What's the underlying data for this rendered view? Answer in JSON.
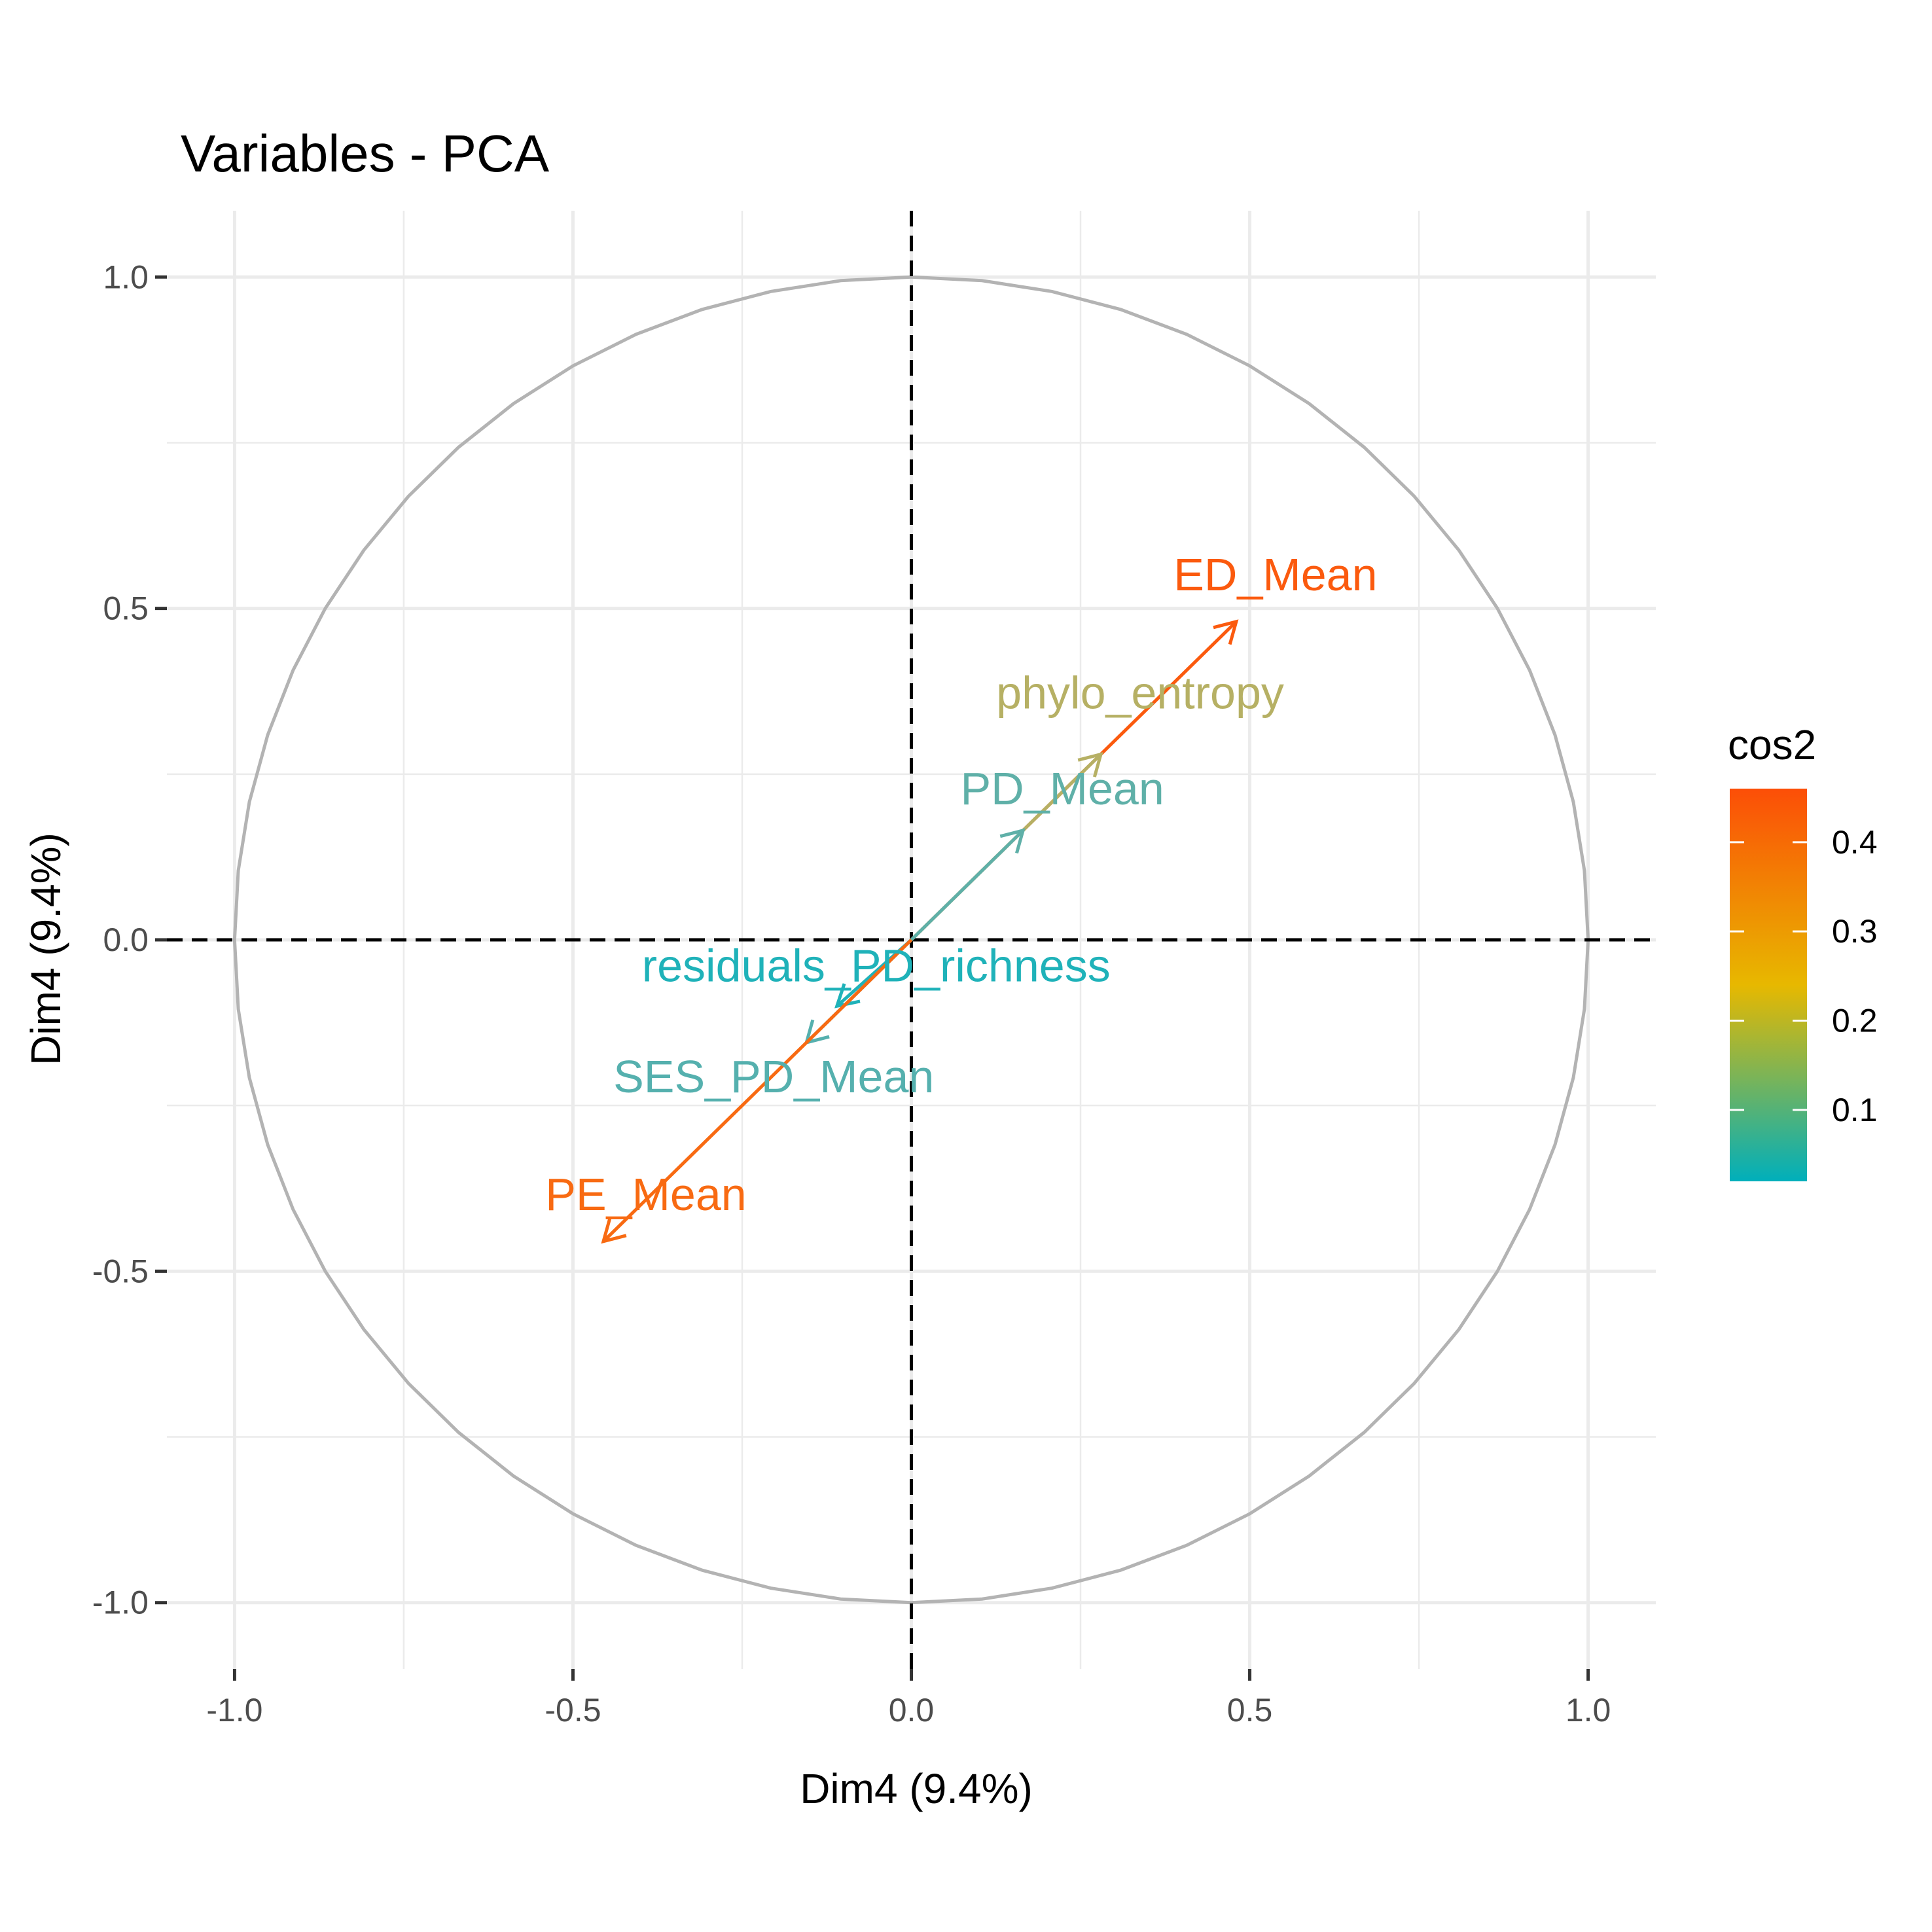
{
  "chart_data": {
    "type": "scatter",
    "subtype": "pca-variable-correlation-circle",
    "title": "Variables - PCA",
    "xlabel": "Dim4 (9.4%)",
    "ylabel": "Dim4 (9.4%)",
    "xlim": [
      -1.1,
      1.1
    ],
    "ylim": [
      -1.1,
      1.1
    ],
    "x_ticks": [
      {
        "value": -1.0,
        "label": "-1.0"
      },
      {
        "value": -0.5,
        "label": "-0.5"
      },
      {
        "value": 0.0,
        "label": "0.0"
      },
      {
        "value": 0.5,
        "label": "0.5"
      },
      {
        "value": 1.0,
        "label": "1.0"
      }
    ],
    "y_ticks": [
      {
        "value": 1.0,
        "label": "1.0"
      },
      {
        "value": 0.5,
        "label": "0.5"
      },
      {
        "value": 0.0,
        "label": "0.0"
      },
      {
        "value": -0.5,
        "label": "-0.5"
      },
      {
        "value": -1.0,
        "label": "-1.0"
      }
    ],
    "grid": true,
    "unit_circle": true,
    "reference_lines": {
      "x": 0,
      "y": 0,
      "style": "dashed"
    },
    "variables": [
      {
        "name": "ED_Mean",
        "x": 0.48,
        "y": 0.48,
        "cos2": 0.46,
        "color": "#fb5a0e"
      },
      {
        "name": "phylo_entropy",
        "x": 0.28,
        "y": 0.28,
        "cos2": 0.16,
        "color": "#b6b064"
      },
      {
        "name": "PD_Mean",
        "x": 0.165,
        "y": 0.165,
        "cos2": 0.06,
        "color": "#5fb0a8"
      },
      {
        "name": "residuals_PD_richness",
        "x": -0.11,
        "y": -0.1,
        "cos2": 0.02,
        "color": "#1fb2b9"
      },
      {
        "name": "SES_PD_Mean",
        "x": -0.155,
        "y": -0.155,
        "cos2": 0.05,
        "color": "#55b0ae"
      },
      {
        "name": "PE_Mean",
        "x": -0.455,
        "y": -0.455,
        "cos2": 0.42,
        "color": "#f86a12"
      }
    ],
    "legend": {
      "title": "cos2",
      "placement": "right",
      "min": 0.02,
      "max": 0.46,
      "ticks": [
        {
          "value": 0.1,
          "label": "0.1"
        },
        {
          "value": 0.2,
          "label": "0.2"
        },
        {
          "value": 0.3,
          "label": "0.3"
        },
        {
          "value": 0.4,
          "label": "0.4"
        }
      ],
      "gradient_colors": [
        "#00afbb",
        "#e7b800",
        "#fc4e07"
      ]
    }
  }
}
